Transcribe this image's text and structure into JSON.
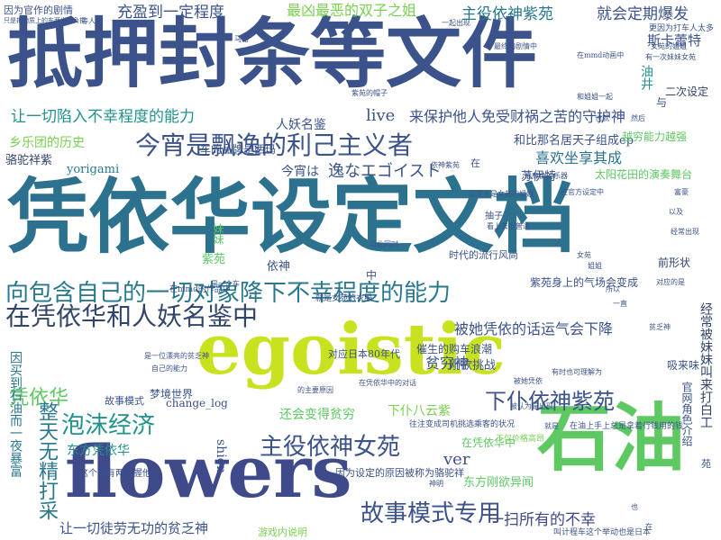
{
  "words": [
    {
      "id": "w0",
      "text": "抵押封条等文件",
      "color": "#3b528b"
    },
    {
      "id": "w1",
      "text": "凭依华设定文档",
      "color": "#2c728e"
    },
    {
      "id": "w2",
      "text": "egoistic",
      "color": "#c9e21f"
    },
    {
      "id": "w3",
      "text": "flowers",
      "color": "#3e4a89"
    },
    {
      "id": "w4",
      "text": "石油",
      "color": "#5ec962"
    },
    {
      "id": "w5",
      "text": "向包含自己的一切对象降下不幸程度的能力",
      "color": "#2a788e"
    },
    {
      "id": "w6",
      "text": "在凭依华和人妖名鉴中",
      "color": "#31456a"
    },
    {
      "id": "w7",
      "text": "今宵是飘逸的利己主义者",
      "color": "#3b528b"
    },
    {
      "id": "w8",
      "text": "让一切陷入不幸程度的能力",
      "color": "#21918c"
    },
    {
      "id": "w9",
      "text": "来保护他人免受财祸之苦的守护神",
      "color": "#3b528b"
    },
    {
      "id": "w10",
      "text": "主役依神女苑",
      "color": "#3b528b"
    },
    {
      "id": "w11",
      "text": "下仆依神紫苑",
      "color": "#3b528b"
    },
    {
      "id": "w12",
      "text": "故事模式专用",
      "color": "#3b528b"
    },
    {
      "id": "w13",
      "text": "泡沫经济",
      "color": "#21918c"
    },
    {
      "id": "w14",
      "text": "凭依华",
      "color": "#5ec962"
    },
    {
      "id": "w15",
      "text": "东方凭依华",
      "color": "#21918c"
    },
    {
      "id": "w16",
      "text": "让一切徒劳无功的贫乏神",
      "color": "#3b528b"
    },
    {
      "id": "w17",
      "text": "一扫所有的不幸",
      "color": "#3e4a89"
    },
    {
      "id": "w18",
      "text": "整天无精打采",
      "color": "#2a788e"
    },
    {
      "id": "w19",
      "text": "充盈到一定程度",
      "color": "#3b528b"
    },
    {
      "id": "w20",
      "text": "最凶最恶的双子之姐",
      "color": "#7ad151"
    },
    {
      "id": "w21",
      "text": "主役依神紫苑",
      "color": "#2a788e"
    },
    {
      "id": "w22",
      "text": "就会定期爆发",
      "color": "#3b528b"
    },
    {
      "id": "w23",
      "text": "斯卡蕾特",
      "color": "#3b528b"
    },
    {
      "id": "w24",
      "text": "二次设定",
      "color": "#31456a"
    },
    {
      "id": "w25",
      "text": "油井",
      "color": "#21918c"
    },
    {
      "id": "w26",
      "text": "live",
      "color": "#3b528b"
    },
    {
      "id": "w27",
      "text": "人妖名鉴",
      "color": "#3b528b"
    },
    {
      "id": "w28",
      "text": "和比那名居天子组成ep",
      "color": "#3b528b"
    },
    {
      "id": "w29",
      "text": "越穷能力越强",
      "color": "#5ec962"
    },
    {
      "id": "w30",
      "text": "喜欢坐享其成",
      "color": "#2c728e"
    },
    {
      "id": "w31",
      "text": "乡乐团的历史",
      "color": "#7ad151"
    },
    {
      "id": "w32",
      "text": "骆驼祥紫",
      "color": "#31456a"
    },
    {
      "id": "w33",
      "text": "yorigami",
      "color": "#2a788e"
    },
    {
      "id": "w34",
      "text": "车的品牌是西玛",
      "color": "#3b528b"
    },
    {
      "id": "w35",
      "text": "今宵は",
      "color": "#3b528b"
    },
    {
      "id": "w36",
      "text": "逸なエゴイスト",
      "color": "#3b528b"
    },
    {
      "id": "w37",
      "text": "苏伊特",
      "color": "#3b528b"
    },
    {
      "id": "w38",
      "text": "太阳花田的演奏舞台",
      "color": "#5ec962"
    },
    {
      "id": "w39",
      "text": "妹妹",
      "color": "#5ec962"
    },
    {
      "id": "w40",
      "text": "紫苑",
      "color": "#5ec962"
    },
    {
      "id": "w41",
      "text": "依神",
      "color": "#3b528b"
    },
    {
      "id": "w42",
      "text": "时代的流行风尚",
      "color": "#3b528b"
    },
    {
      "id": "w43",
      "text": "前形状",
      "color": "#31456a"
    },
    {
      "id": "w44",
      "text": "紫苑身上的气场会变成",
      "color": "#3b528b"
    },
    {
      "id": "w45",
      "text": "贫穷神",
      "color": "#3b528b"
    },
    {
      "id": "w46",
      "text": "被她凭依的话运气会下降",
      "color": "#3b528b"
    },
    {
      "id": "w47",
      "text": "对应日本80年代",
      "color": "#3b528b"
    },
    {
      "id": "w48",
      "text": "催生的购车浪潮",
      "color": "#3b528b"
    },
    {
      "id": "w49",
      "text": "刚欲挑战",
      "color": "#3b528b"
    },
    {
      "id": "w50",
      "text": "还会变得贫穷",
      "color": "#5ec962"
    },
    {
      "id": "w51",
      "text": "下仆八云紫",
      "color": "#7ad151"
    },
    {
      "id": "w52",
      "text": "梦境世界",
      "color": "#3b528b"
    },
    {
      "id": "w53",
      "text": "故事模式",
      "color": "#3b528b"
    },
    {
      "id": "w54",
      "text": "change_log",
      "color": "#3b528b"
    },
    {
      "id": "w55",
      "text": "shion",
      "color": "#3b528b"
    },
    {
      "id": "w56",
      "text": "ver",
      "color": "#3b528b"
    },
    {
      "id": "w57",
      "text": "在凭依华中",
      "color": "#5ec962"
    },
    {
      "id": "w58",
      "text": "东方刚欲异闻",
      "color": "#5ec962"
    },
    {
      "id": "w59",
      "text": "因为设定的原因被称为骆驼祥",
      "color": "#3b528b"
    },
    {
      "id": "w60",
      "text": "游戏内说明",
      "color": "#7ad151"
    },
    {
      "id": "w61",
      "text": "吸来味",
      "color": "#3b528b"
    },
    {
      "id": "w62",
      "text": "官网角色介绍",
      "color": "#3b528b"
    },
    {
      "id": "w63",
      "text": "经常被妹妹叫来打白工",
      "color": "#31456a"
    },
    {
      "id": "w64",
      "text": "因为官作的剧情",
      "color": "#3b528b"
    },
    {
      "id": "w65",
      "text": "因买到石油而一夜暴富",
      "color": "#2a788e"
    },
    {
      "id": "w66",
      "text": "更因为打车人太多",
      "color": "#3b528b"
    },
    {
      "id": "w67",
      "text": "这个车有两个握他",
      "color": "#3b528b"
    },
    {
      "id": "w68",
      "text": "叫计程车这个举动也是日本",
      "color": "#3b528b"
    },
    {
      "id": "w69",
      "text": "往注变成司机挑选乘客的状况",
      "color": "#3b528b"
    },
    {
      "id": "w70",
      "text": "在mmd的作品中",
      "color": "#3b528b"
    },
    {
      "id": "w71",
      "text": "就是女苑的衣服",
      "color": "#3b528b"
    },
    {
      "id": "w72",
      "text": "不仅价格高昂",
      "color": "#7ad151"
    },
    {
      "id": "w73",
      "text": "在油上手上总是拿着行钱用的钱",
      "color": "#3b528b"
    },
    {
      "id": "w74",
      "text": "中",
      "color": "#3b528b"
    },
    {
      "id": "w75",
      "text": "与",
      "color": "#3b528b"
    },
    {
      "id": "w76",
      "text": "在",
      "color": "#3b528b"
    },
    {
      "id": "w77",
      "text": "抽子",
      "color": "#3b528b"
    },
    {
      "id": "w78",
      "text": "苑",
      "color": "#3b528b"
    },
    {
      "id": "w79",
      "text": "等人",
      "color": "#3b528b"
    },
    {
      "id": "w80",
      "text": "最终的剧情中",
      "color": "#3b528b"
    },
    {
      "id": "w81",
      "text": "在mmd动画中",
      "color": "#3b528b"
    },
    {
      "id": "w82",
      "text": "有一次妹妹女苑",
      "color": "#3b528b"
    },
    {
      "id": "w83",
      "text": "设定上是女苑的姐姐",
      "color": "#3b528b"
    },
    {
      "id": "w84",
      "text": "最廉价的乐器",
      "color": "#3b528b"
    },
    {
      "id": "w85",
      "text": "有时也可理解为",
      "color": "#3b528b"
    },
    {
      "id": "w86",
      "text": "在凭依华中的对话",
      "color": "#3b528b"
    },
    {
      "id": "w87",
      "text": "只是把物质上的东西当作负担",
      "color": "#3b528b"
    },
    {
      "id": "w88",
      "text": "是一位漂亮的贫乏神",
      "color": "#3b528b"
    },
    {
      "id": "w89",
      "text": "自己的能力",
      "color": "#3b528b"
    },
    {
      "id": "w90",
      "text": "和姐姐一起",
      "color": "#3b528b"
    },
    {
      "id": "w91",
      "text": "看上去很普通",
      "color": "#3b528b"
    },
    {
      "id": "w92",
      "text": "对应的是",
      "color": "#3b528b"
    },
    {
      "id": "w93",
      "text": "一起出现",
      "color": "#3b528b"
    },
    {
      "id": "w94",
      "text": "紫苑的帽子",
      "color": "#3b528b"
    },
    {
      "id": "w95",
      "text": "马路",
      "color": "#3b528b"
    },
    {
      "id": "w96",
      "text": "女苑的姐姐",
      "color": "#3b528b"
    },
    {
      "id": "w97",
      "text": "是一个车",
      "color": "#3b528b"
    },
    {
      "id": "w98",
      "text": "神明",
      "color": "#3b528b"
    },
    {
      "id": "w99",
      "text": "被认为是出现",
      "color": "#3b528b"
    },
    {
      "id": "w100",
      "text": "在官方设定中",
      "color": "#3b528b"
    },
    {
      "id": "w101",
      "text": "依神紫苑",
      "color": "#3b528b"
    },
    {
      "id": "w102",
      "text": "的主要原因",
      "color": "#3b528b"
    },
    {
      "id": "w103",
      "text": "与此同时",
      "color": "#3b528b"
    },
    {
      "id": "w104",
      "text": "被她凭依",
      "color": "#3b528b"
    },
    {
      "id": "w105",
      "text": "以及",
      "color": "#3b528b"
    },
    {
      "id": "w106",
      "text": "经常出现",
      "color": "#3b528b"
    },
    {
      "id": "w107",
      "text": "所以",
      "color": "#3b528b"
    },
    {
      "id": "w108",
      "text": "一直",
      "color": "#3b528b"
    },
    {
      "id": "w109",
      "text": "贫乏神",
      "color": "#3b528b"
    },
    {
      "id": "w110",
      "text": "富豪",
      "color": "#3b528b"
    },
    {
      "id": "w111",
      "text": "然后",
      "color": "#3b528b"
    },
    {
      "id": "w112",
      "text": "也就",
      "color": "#3b528b"
    },
    {
      "id": "w113",
      "text": "姐姐",
      "color": "#3b528b"
    },
    {
      "id": "w114",
      "text": "女苑",
      "color": "#3b528b"
    },
    {
      "id": "w115",
      "text": "就是",
      "color": "#3b528b"
    },
    {
      "id": "w116",
      "text": "在",
      "color": "#3b528b"
    },
    {
      "id": "w117",
      "text": "也",
      "color": "#3b528b"
    }
  ]
}
